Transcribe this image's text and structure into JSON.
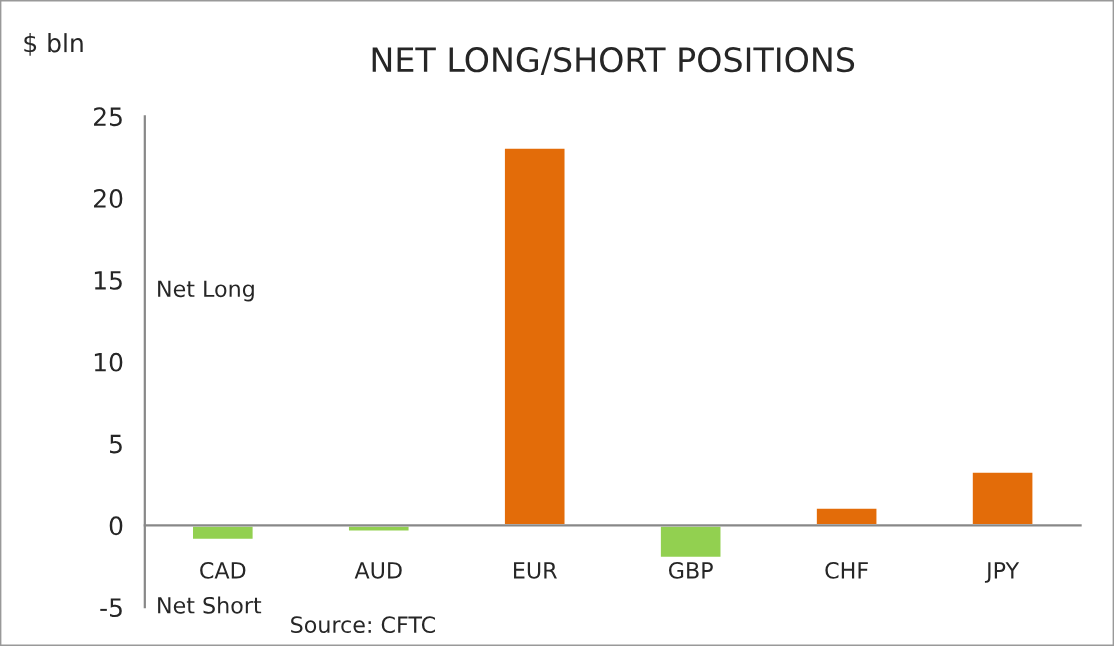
{
  "chart_data": {
    "type": "bar",
    "title": "NET LONG/SHORT POSITIONS",
    "ylabel": "$ bln",
    "categories": [
      "CAD",
      "AUD",
      "EUR",
      "GBP",
      "CHF",
      "JPY"
    ],
    "values": [
      -0.9,
      -0.4,
      23.1,
      -2.0,
      1.1,
      3.3
    ],
    "colors": [
      "#92d050",
      "#92d050",
      "#e36c09",
      "#92d050",
      "#e36c09",
      "#e36c09"
    ],
    "ylim": [
      -5,
      25
    ],
    "yticks": [
      -5,
      0,
      5,
      10,
      15,
      20,
      25
    ],
    "grid": false,
    "legend": false,
    "annotations": [
      "Net Long",
      "Net Short",
      "Source: CFTC"
    ]
  }
}
